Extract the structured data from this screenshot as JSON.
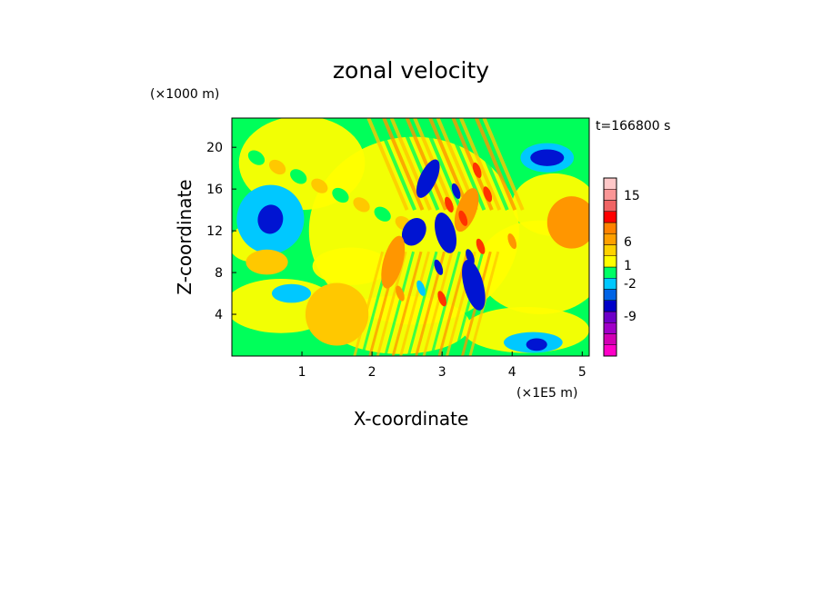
{
  "chart_data": {
    "type": "heatmap",
    "title": "zonal velocity",
    "xlabel": "X-coordinate",
    "ylabel": "Z-coordinate",
    "x_unit": "(×1E5 m)",
    "y_unit": "(×1000 m)",
    "timestamp": "t=166800 s",
    "xlim": [
      0,
      5.1
    ],
    "ylim": [
      0,
      22.8
    ],
    "x_ticks": [
      "1",
      "2",
      "3",
      "4",
      "5"
    ],
    "y_ticks": [
      "4",
      "8",
      "12",
      "16",
      "20"
    ],
    "colorbar": {
      "levels": [
        {
          "color": "#ff00c8"
        },
        {
          "color": "#d200b4"
        },
        {
          "color": "#a000c8"
        },
        {
          "color": "#6e00c8"
        },
        {
          "color": "#0000c8"
        },
        {
          "color": "#0064e6"
        },
        {
          "color": "#00c8ff"
        },
        {
          "color": "#00ff64"
        },
        {
          "color": "#ffff00"
        },
        {
          "color": "#ffd200"
        },
        {
          "color": "#ffa000"
        },
        {
          "color": "#ff8200"
        },
        {
          "color": "#ff0000"
        },
        {
          "color": "#f06464"
        },
        {
          "color": "#fa9696"
        },
        {
          "color": "#ffc8c8"
        }
      ],
      "tick_labels": [
        "15",
        "6",
        "1",
        "-2",
        "-9"
      ]
    },
    "palette": {
      "background_green": "#00ff5a",
      "yellow": "#ffff00",
      "light_orange": "#ffc800",
      "orange": "#ff9600",
      "red": "#ff3200",
      "cyan": "#00c8ff",
      "blue": "#0014d2"
    },
    "features": [
      {
        "kind": "cyan",
        "x": 0.55,
        "z": 13.1,
        "rx": 0.48,
        "rz": 3.3,
        "rot": 10
      },
      {
        "kind": "blue",
        "x": 0.55,
        "z": 13.1,
        "rx": 0.18,
        "rz": 1.4,
        "rot": 10
      },
      {
        "kind": "cyan",
        "x": 4.5,
        "z": 19.0,
        "rx": 0.38,
        "rz": 1.4,
        "rot": 0
      },
      {
        "kind": "blue",
        "x": 4.5,
        "z": 19.0,
        "rx": 0.24,
        "rz": 0.8,
        "rot": 0
      },
      {
        "kind": "blue",
        "x": 2.8,
        "z": 17.0,
        "rx": 0.12,
        "rz": 2.0,
        "rot": 25
      },
      {
        "kind": "blue",
        "x": 3.05,
        "z": 11.8,
        "rx": 0.14,
        "rz": 2.0,
        "rot": -15
      },
      {
        "kind": "blue",
        "x": 3.45,
        "z": 6.8,
        "rx": 0.14,
        "rz": 2.5,
        "rot": -15
      },
      {
        "kind": "blue",
        "x": 2.6,
        "z": 11.9,
        "rx": 0.16,
        "rz": 1.4,
        "rot": 30
      },
      {
        "kind": "orange",
        "x": 4.85,
        "z": 12.8,
        "rx": 0.35,
        "rz": 2.5,
        "rot": 0
      },
      {
        "kind": "orange",
        "x": 3.35,
        "z": 14.0,
        "rx": 0.14,
        "rz": 2.2,
        "rot": 20
      },
      {
        "kind": "orange",
        "x": 2.3,
        "z": 9.0,
        "rx": 0.14,
        "rz": 2.6,
        "rot": 15
      },
      {
        "kind": "light_orange",
        "x": 1.5,
        "z": 4.0,
        "rx": 0.45,
        "rz": 3.0,
        "rot": 0
      },
      {
        "kind": "light_orange",
        "x": 0.5,
        "z": 9.0,
        "rx": 0.3,
        "rz": 1.2,
        "rot": 0
      },
      {
        "kind": "cyan",
        "x": 0.85,
        "z": 6.0,
        "rx": 0.28,
        "rz": 0.9,
        "rot": 0
      },
      {
        "kind": "cyan",
        "x": 4.3,
        "z": 1.3,
        "rx": 0.42,
        "rz": 1.0,
        "rot": 0
      },
      {
        "kind": "blue",
        "x": 4.35,
        "z": 1.1,
        "rx": 0.15,
        "rz": 0.6,
        "rot": 0
      }
    ]
  }
}
